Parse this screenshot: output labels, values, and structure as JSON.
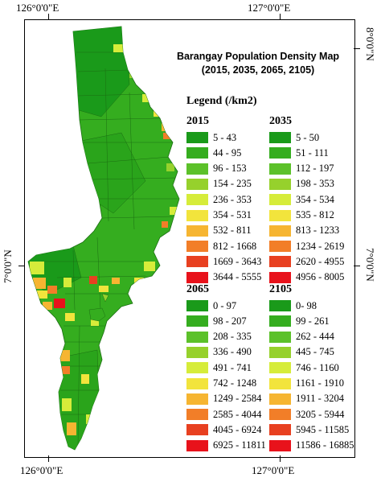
{
  "title_line1": "Barangay Population Density Map",
  "title_line2": "(2015, 2035, 2065, 2105)",
  "coords": {
    "top_left": "126°0'0\"E",
    "top_right": "127°0'0\"E",
    "bottom_left": "126°0'0\"E",
    "bottom_right": "127°0'0\"E",
    "left": "7°0'0\"N",
    "right_mid": "7°0'0\"N",
    "right_top": "8°0'0\"N"
  },
  "legend": {
    "title": "Legend (/km2)",
    "groups": [
      {
        "year": "2015",
        "items": [
          "5 - 43",
          "44 - 95",
          "96 - 153",
          "154 - 235",
          "236 - 353",
          "354 - 531",
          "532 - 811",
          "812 - 1668",
          "1669 - 3643",
          "3644 - 5555"
        ]
      },
      {
        "year": "2035",
        "items": [
          "5 - 50",
          "51 - 111",
          "112 - 197",
          "198 - 353",
          "354 - 534",
          "535 - 812",
          "813 - 1233",
          "1234 - 2619",
          "2620 - 4955",
          "4956 - 8005"
        ]
      },
      {
        "year": "2065",
        "items": [
          "0 - 97",
          "98 - 207",
          "208 - 335",
          "336 - 490",
          "491 - 741",
          "742 - 1248",
          "1249 - 2584",
          "2585 - 4044",
          "4045 - 6924",
          "6925 - 11811"
        ]
      },
      {
        "year": "2105",
        "items": [
          "0- 98",
          "99 - 261",
          "262 - 444",
          "445 - 745",
          "746 - 1160",
          "1161 - 1910",
          "1911 - 3204",
          "3205 - 5944",
          "5945 - 11585",
          "11586 - 16885"
        ]
      }
    ]
  },
  "class_colors": [
    "#1a9a1a",
    "#35ad1f",
    "#5cc12a",
    "#96d12c",
    "#d6ec3a",
    "#f2e43c",
    "#f6b531",
    "#f27e28",
    "#e84020",
    "#e8121b"
  ]
}
